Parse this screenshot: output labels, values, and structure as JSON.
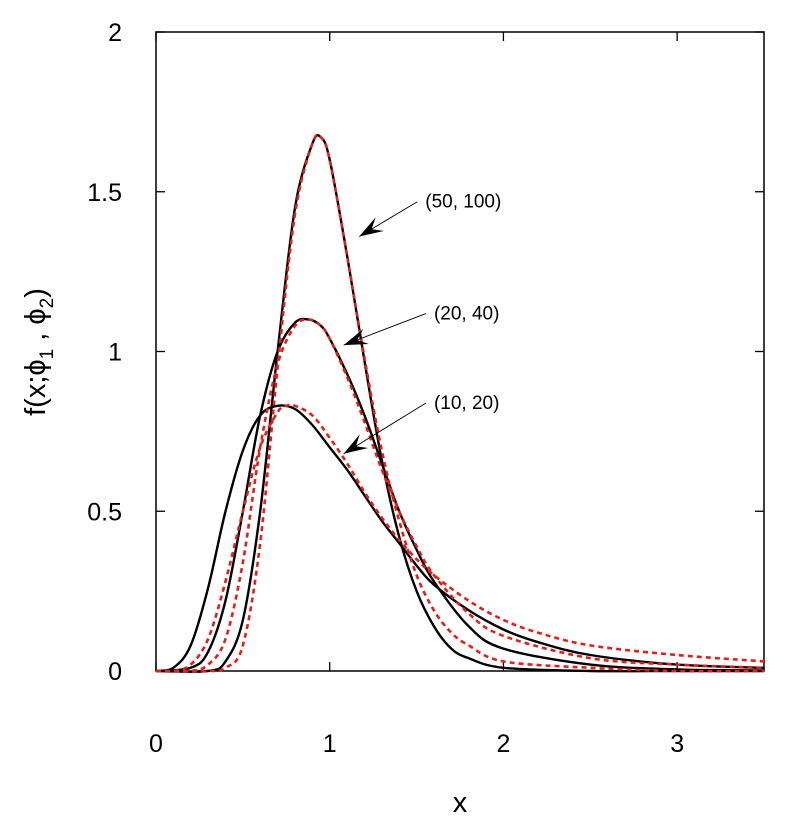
{
  "chart_data": {
    "type": "line",
    "xlabel": "x",
    "ylabel_parts": {
      "prefix": "f(x;",
      "phi": "ϕ",
      "sub1": "1",
      "sep": " , ",
      "sub2": "2",
      "suffix": ")"
    },
    "xlim": [
      0,
      3.5
    ],
    "ylim": [
      0,
      2
    ],
    "xticks": [
      0,
      1,
      2,
      3
    ],
    "yticks": [
      0,
      0.5,
      1,
      1.5,
      2
    ],
    "xtick_labels": [
      "0",
      "1",
      "2",
      "3"
    ],
    "ytick_labels": [
      "0",
      "0.5",
      "1",
      "1.5",
      "2"
    ],
    "grid": false,
    "colors": {
      "solid": "#000000",
      "dashed": "#e0201b"
    },
    "annotations": [
      {
        "text": "(50, 100)",
        "text_pos": [
          1.55,
          1.45
        ],
        "arrow_target": [
          1.17,
          1.36
        ]
      },
      {
        "text": "(20, 40)",
        "text_pos": [
          1.6,
          1.1
        ],
        "arrow_target": [
          1.08,
          1.02
        ]
      },
      {
        "text": "(10, 20)",
        "text_pos": [
          1.6,
          0.82
        ],
        "arrow_target": [
          1.08,
          0.68
        ]
      }
    ],
    "series": [
      {
        "style": "solid",
        "x": [
          0,
          0.1,
          0.2,
          0.3,
          0.4,
          0.5,
          0.6,
          0.7,
          0.8,
          0.9,
          1.0,
          1.1,
          1.2,
          1.3,
          1.4,
          1.5,
          1.6,
          1.8,
          2.0,
          2.2,
          2.5,
          3.0,
          3.5
        ],
        "y": [
          0,
          0.01,
          0.08,
          0.26,
          0.5,
          0.69,
          0.8,
          0.83,
          0.82,
          0.77,
          0.7,
          0.63,
          0.55,
          0.47,
          0.4,
          0.33,
          0.27,
          0.19,
          0.13,
          0.09,
          0.05,
          0.02,
          0.01
        ]
      },
      {
        "style": "dashed",
        "x": [
          0,
          0.1,
          0.2,
          0.3,
          0.4,
          0.5,
          0.6,
          0.7,
          0.75,
          0.8,
          0.9,
          1.0,
          1.1,
          1.2,
          1.3,
          1.4,
          1.5,
          1.6,
          1.8,
          2.0,
          2.2,
          2.5,
          3.0,
          3.5
        ],
        "y": [
          0,
          0.0,
          0.02,
          0.1,
          0.28,
          0.5,
          0.7,
          0.81,
          0.83,
          0.83,
          0.8,
          0.73,
          0.65,
          0.56,
          0.48,
          0.41,
          0.35,
          0.3,
          0.22,
          0.16,
          0.12,
          0.08,
          0.05,
          0.03
        ]
      },
      {
        "style": "solid",
        "x": [
          0,
          0.2,
          0.3,
          0.4,
          0.5,
          0.6,
          0.7,
          0.8,
          0.88,
          0.95,
          1.0,
          1.1,
          1.2,
          1.3,
          1.4,
          1.5,
          1.6,
          1.8,
          2.0,
          2.5,
          3.0,
          3.5
        ],
        "y": [
          0,
          0.01,
          0.06,
          0.22,
          0.5,
          0.8,
          1.0,
          1.09,
          1.1,
          1.08,
          1.04,
          0.93,
          0.8,
          0.65,
          0.5,
          0.38,
          0.28,
          0.14,
          0.07,
          0.02,
          0.005,
          0.002
        ]
      },
      {
        "style": "dashed",
        "x": [
          0,
          0.2,
          0.3,
          0.4,
          0.5,
          0.6,
          0.7,
          0.8,
          0.88,
          0.95,
          1.0,
          1.1,
          1.2,
          1.3,
          1.4,
          1.5,
          1.6,
          1.8,
          2.0,
          2.5,
          3.0,
          3.5
        ],
        "y": [
          0,
          0.0,
          0.02,
          0.1,
          0.34,
          0.7,
          0.96,
          1.08,
          1.1,
          1.08,
          1.04,
          0.92,
          0.78,
          0.63,
          0.5,
          0.39,
          0.3,
          0.18,
          0.11,
          0.04,
          0.02,
          0.01
        ]
      },
      {
        "style": "solid",
        "x": [
          0,
          0.3,
          0.4,
          0.5,
          0.6,
          0.7,
          0.8,
          0.9,
          0.95,
          1.0,
          1.1,
          1.2,
          1.3,
          1.4,
          1.5,
          1.6,
          1.7,
          1.8,
          2.0,
          2.5,
          3.0,
          3.5
        ],
        "y": [
          0,
          0.0,
          0.03,
          0.16,
          0.5,
          1.0,
          1.45,
          1.65,
          1.67,
          1.6,
          1.3,
          0.97,
          0.66,
          0.42,
          0.25,
          0.14,
          0.07,
          0.04,
          0.01,
          0.0,
          0.0,
          0.0
        ]
      },
      {
        "style": "dashed",
        "x": [
          0,
          0.3,
          0.4,
          0.5,
          0.6,
          0.7,
          0.8,
          0.9,
          0.95,
          1.0,
          1.1,
          1.2,
          1.3,
          1.4,
          1.5,
          1.6,
          1.7,
          1.8,
          2.0,
          2.5,
          3.0,
          3.5
        ],
        "y": [
          0,
          0.0,
          0.01,
          0.08,
          0.4,
          0.95,
          1.43,
          1.65,
          1.67,
          1.6,
          1.3,
          0.98,
          0.69,
          0.47,
          0.3,
          0.19,
          0.12,
          0.08,
          0.03,
          0.01,
          0.0,
          0.0
        ]
      }
    ]
  }
}
